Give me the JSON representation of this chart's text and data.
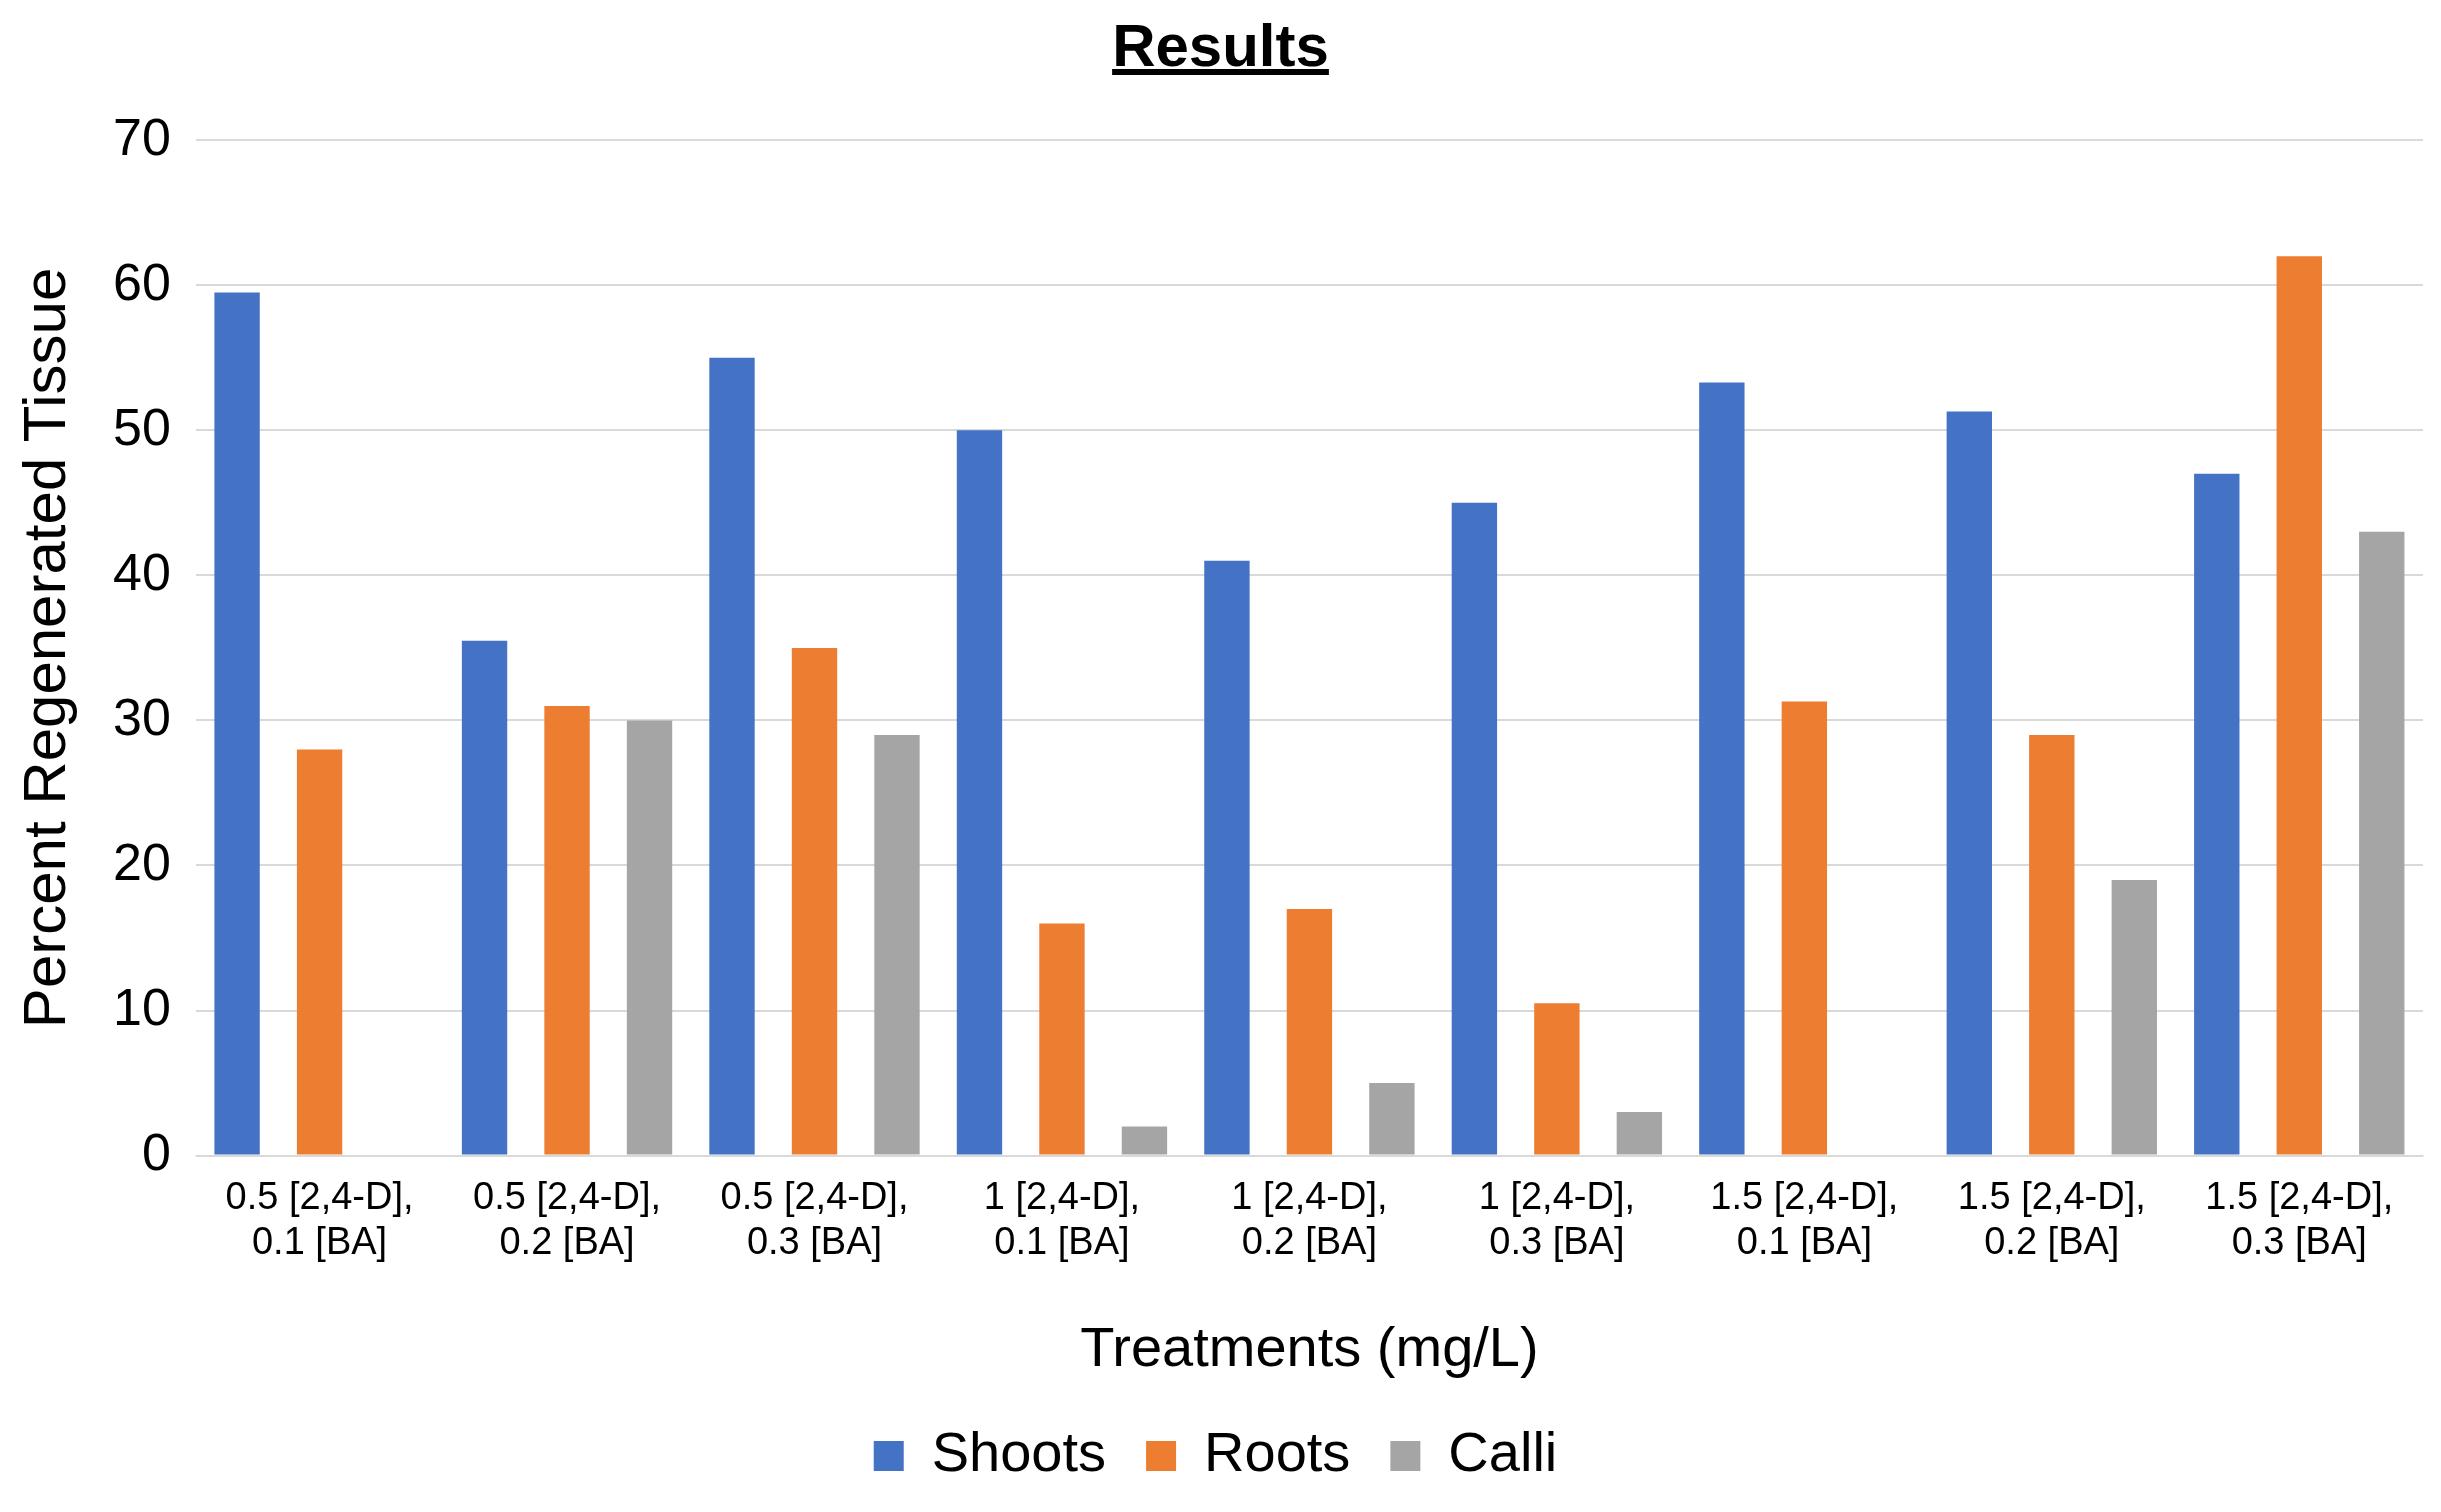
{
  "chart_data": {
    "type": "bar",
    "title": "Results",
    "xlabel": "Treatments (mg/L)",
    "ylabel": "Percent Regenerated Tissue",
    "categories": [
      "0.5 [2,4-D], 0.1 [BA]",
      "0.5 [2,4-D], 0.2 [BA]",
      "0.5 [2,4-D], 0.3 [BA]",
      "1 [2,4-D], 0.1 [BA]",
      "1 [2,4-D], 0.2 [BA]",
      "1 [2,4-D], 0.3 [BA]",
      "1.5 [2,4-D], 0.1 [BA]",
      "1.5 [2,4-D], 0.2 [BA]",
      "1.5 [2,4-D], 0.3 [BA]"
    ],
    "series": [
      {
        "name": "Shoots",
        "color": "#4472c4",
        "values": [
          59.5,
          35.5,
          55,
          50,
          41,
          45,
          53.3,
          51.3,
          47
        ]
      },
      {
        "name": "Roots",
        "color": "#ed7d31",
        "values": [
          28,
          31,
          35,
          16,
          17,
          10.5,
          31.3,
          29,
          62
        ]
      },
      {
        "name": "Calli",
        "color": "#a5a5a5",
        "values": [
          0,
          30,
          29,
          2,
          5,
          3,
          0,
          19,
          43
        ]
      }
    ],
    "ylim": [
      0,
      70
    ],
    "yticks": [
      0,
      10,
      20,
      30,
      40,
      50,
      60,
      70
    ],
    "grid": "y",
    "legend": "bottom"
  }
}
